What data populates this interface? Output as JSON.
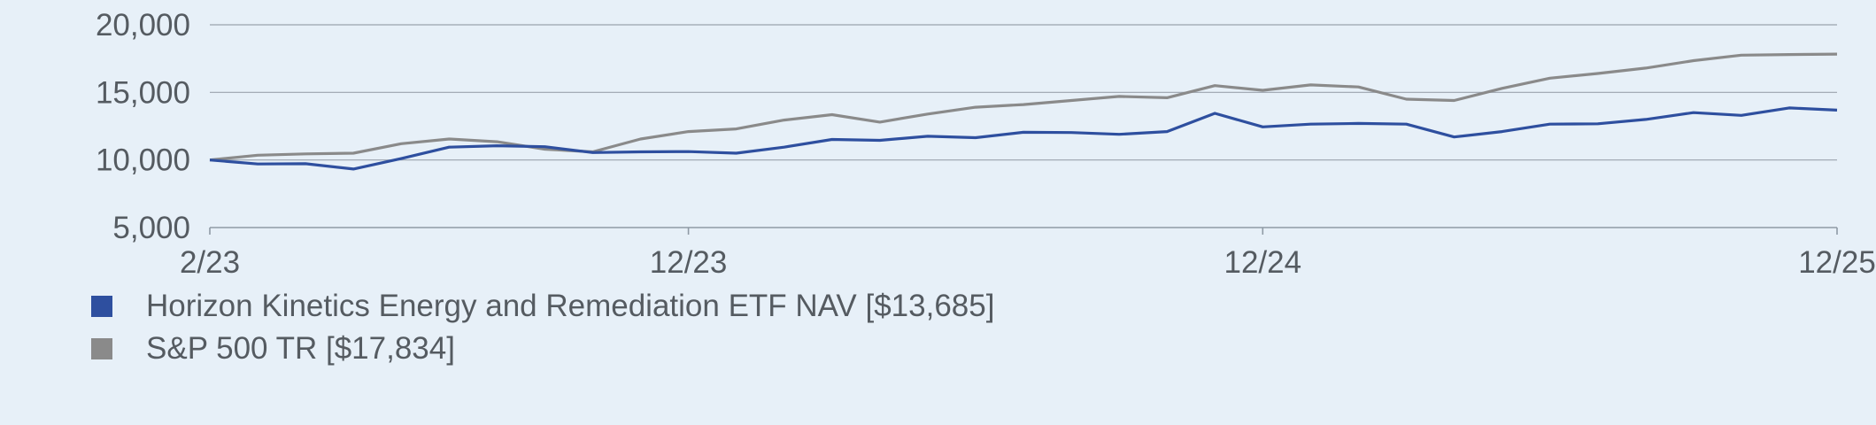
{
  "chart_data": {
    "type": "line",
    "title": "",
    "xlabel": "",
    "ylabel": "",
    "ylim": [
      5000,
      20000
    ],
    "y_ticks": [
      {
        "value": 5000,
        "label": "5,000"
      },
      {
        "value": 10000,
        "label": "10,000"
      },
      {
        "value": 15000,
        "label": "15,000"
      },
      {
        "value": 20000,
        "label": "20,000"
      }
    ],
    "x_ticks": [
      {
        "index": 0,
        "label": "2/23"
      },
      {
        "index": 10,
        "label": "12/23"
      },
      {
        "index": 22,
        "label": "12/24"
      },
      {
        "index": 34,
        "label": "12/25"
      }
    ],
    "grid": true,
    "legend_position": "bottom-left",
    "series": [
      {
        "name": "Horizon Kinetics Energy and Remediation ETF NAV [$13,685]",
        "color": "#2e4f9f",
        "values": [
          10000,
          9700,
          9720,
          9330,
          10100,
          10950,
          11050,
          10980,
          10550,
          10600,
          10620,
          10500,
          10950,
          11520,
          11450,
          11750,
          11650,
          12050,
          12030,
          11900,
          12100,
          13450,
          12450,
          12650,
          12700,
          12650,
          11700,
          12100,
          12650,
          12680,
          13000,
          13500,
          13300,
          13850,
          13685
        ]
      },
      {
        "name": "S&P 500 TR [$17,834]",
        "color": "#8a8a8a",
        "values": [
          10000,
          10350,
          10450,
          10500,
          11200,
          11550,
          11350,
          10800,
          10600,
          11550,
          12100,
          12300,
          12950,
          13350,
          12800,
          13400,
          13900,
          14100,
          14400,
          14700,
          14600,
          15500,
          15150,
          15550,
          15400,
          14500,
          14400,
          15300,
          16050,
          16400,
          16800,
          17350,
          17750,
          17800,
          17834
        ]
      }
    ]
  }
}
